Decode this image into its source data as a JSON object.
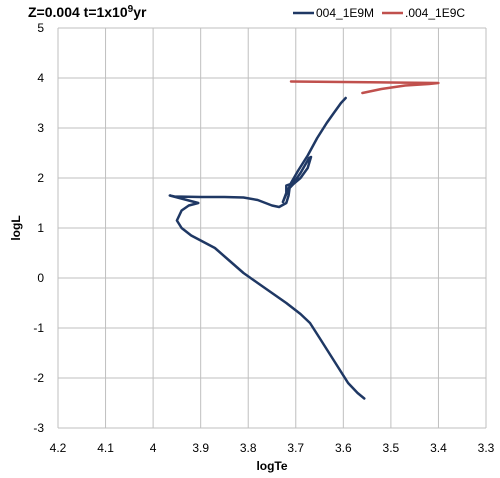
{
  "chart_data": {
    "type": "line",
    "title": {
      "prefix": "Z=0.004 t=1x10",
      "sup": "9",
      "suffix": "yr"
    },
    "xlabel": "logTe",
    "ylabel": "logL",
    "xlim": [
      4.2,
      3.3
    ],
    "ylim": [
      -3,
      5
    ],
    "x_ticks": [
      4.2,
      4.1,
      4,
      3.9,
      3.8,
      3.7,
      3.6,
      3.5,
      3.4,
      3.3
    ],
    "x_tick_labels": [
      "4.2",
      "4.1",
      "4",
      "3.9",
      "3.8",
      "3.7",
      "3.6",
      "3.5",
      "3.4",
      "3.3"
    ],
    "y_ticks": [
      -3,
      -2,
      -1,
      0,
      1,
      2,
      3,
      4,
      5
    ],
    "y_tick_labels": [
      "-3",
      "-2",
      "-1",
      "0",
      "1",
      "2",
      "3",
      "4",
      "5"
    ],
    "grid": true,
    "legend_position": "top-right",
    "series": [
      {
        "name": "004_1E9M",
        "color": "#1f3864",
        "points": [
          [
            3.556,
            -2.41
          ],
          [
            3.57,
            -2.3
          ],
          [
            3.59,
            -2.1
          ],
          [
            3.61,
            -1.8
          ],
          [
            3.63,
            -1.5
          ],
          [
            3.65,
            -1.2
          ],
          [
            3.67,
            -0.9
          ],
          [
            3.69,
            -0.72
          ],
          [
            3.72,
            -0.5
          ],
          [
            3.75,
            -0.3
          ],
          [
            3.78,
            -0.1
          ],
          [
            3.81,
            0.1
          ],
          [
            3.84,
            0.35
          ],
          [
            3.87,
            0.6
          ],
          [
            3.9,
            0.75
          ],
          [
            3.92,
            0.85
          ],
          [
            3.94,
            1.0
          ],
          [
            3.95,
            1.15
          ],
          [
            3.94,
            1.35
          ],
          [
            3.925,
            1.45
          ],
          [
            3.905,
            1.5
          ],
          [
            3.925,
            1.55
          ],
          [
            3.945,
            1.6
          ],
          [
            3.965,
            1.65
          ],
          [
            3.955,
            1.63
          ],
          [
            3.9,
            1.62
          ],
          [
            3.85,
            1.62
          ],
          [
            3.81,
            1.61
          ],
          [
            3.78,
            1.56
          ],
          [
            3.75,
            1.45
          ],
          [
            3.735,
            1.42
          ],
          [
            3.72,
            1.5
          ],
          [
            3.715,
            1.65
          ],
          [
            3.713,
            1.8
          ],
          [
            3.705,
            1.88
          ],
          [
            3.69,
            2.0
          ],
          [
            3.675,
            2.2
          ],
          [
            3.668,
            2.42
          ],
          [
            3.672,
            2.4
          ],
          [
            3.69,
            2.1
          ],
          [
            3.705,
            1.9
          ],
          [
            3.72,
            1.85
          ],
          [
            3.72,
            1.7
          ],
          [
            3.727,
            1.52
          ],
          [
            3.71,
            1.9
          ],
          [
            3.695,
            2.15
          ],
          [
            3.675,
            2.45
          ],
          [
            3.655,
            2.8
          ],
          [
            3.635,
            3.1
          ],
          [
            3.62,
            3.3
          ],
          [
            3.605,
            3.5
          ],
          [
            3.595,
            3.6
          ]
        ]
      },
      {
        "name": ".004_1E9C",
        "color": "#c0504d",
        "points": [
          [
            3.71,
            3.93
          ],
          [
            3.6,
            3.92
          ],
          [
            3.5,
            3.91
          ],
          [
            3.45,
            3.905
          ],
          [
            3.4,
            3.9
          ],
          [
            3.42,
            3.88
          ],
          [
            3.47,
            3.85
          ],
          [
            3.52,
            3.78
          ],
          [
            3.56,
            3.7
          ]
        ]
      }
    ]
  }
}
